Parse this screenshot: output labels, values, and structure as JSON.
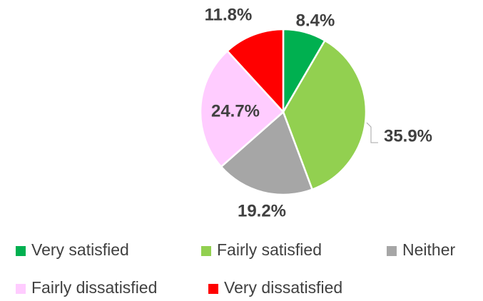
{
  "chart_data": {
    "type": "pie",
    "categories": [
      "Very satisfied",
      "Fairly satisfied",
      "Neither",
      "Fairly dissatisfied",
      "Very dissatisfied"
    ],
    "values": [
      8.4,
      35.9,
      19.2,
      24.7,
      11.8
    ],
    "value_labels": [
      "8.4%",
      "35.9%",
      "19.2%",
      "24.7%",
      "11.8%"
    ],
    "colors": [
      "#00b050",
      "#92d050",
      "#a6a6a6",
      "#ffccff",
      "#ff0000"
    ]
  }
}
